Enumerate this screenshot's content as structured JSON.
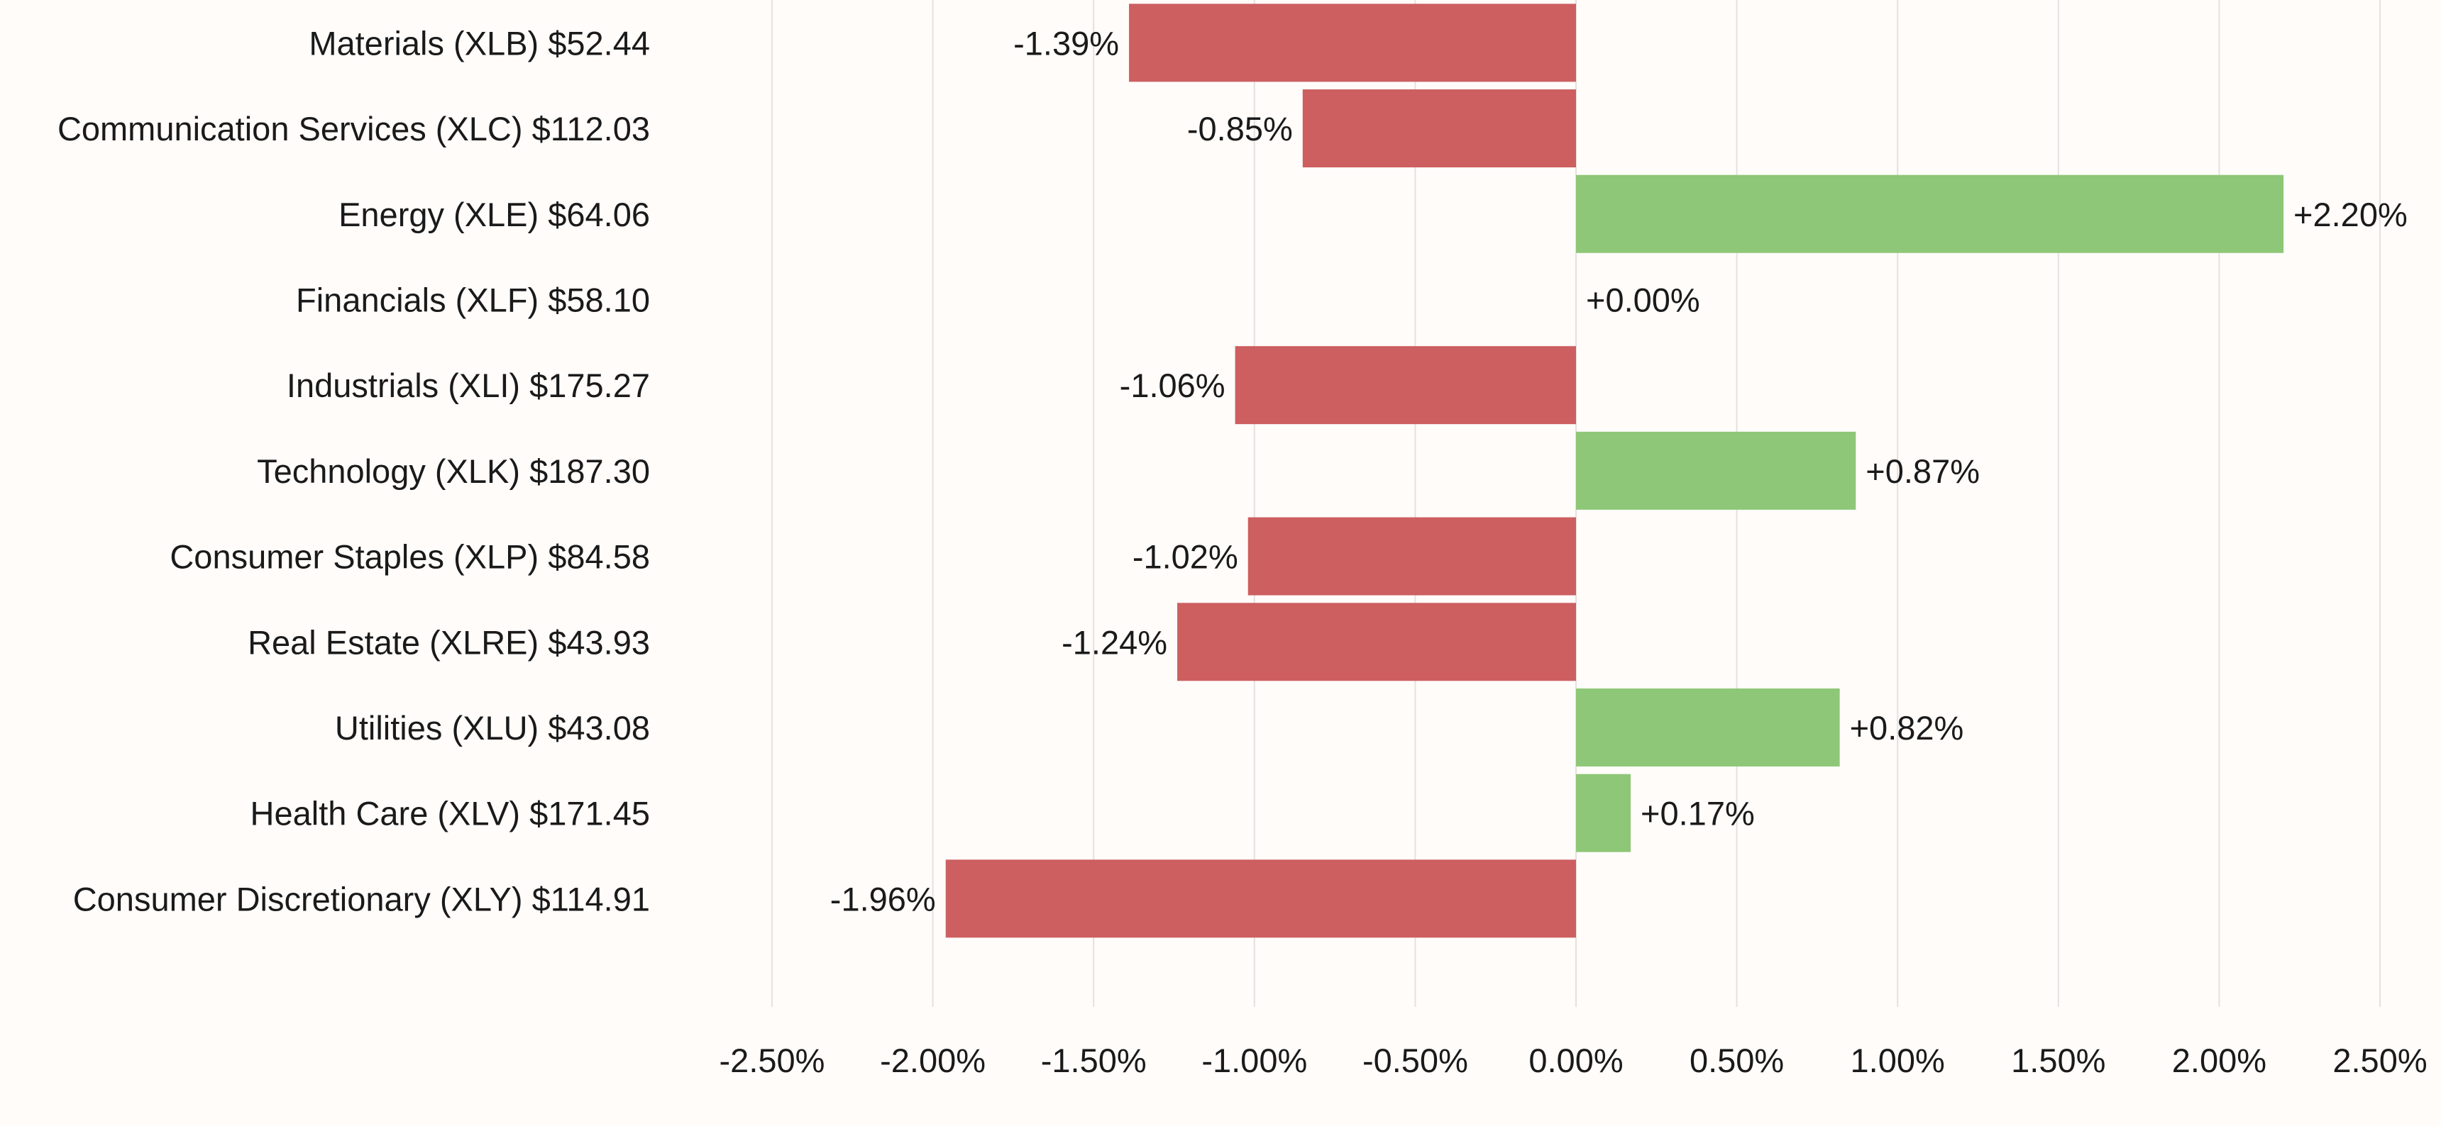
{
  "chart_data": {
    "type": "bar",
    "orientation": "horizontal",
    "categories": [
      "Materials (XLB) $52.44",
      "Communication Services (XLC) $112.03",
      "Energy (XLE) $64.06",
      "Financials (XLF) $58.10",
      "Industrials (XLI) $175.27",
      "Technology (XLK) $187.30",
      "Consumer Staples (XLP) $84.58",
      "Real Estate (XLRE) $43.93",
      "Utilities (XLU) $43.08",
      "Health Care (XLV) $171.45",
      "Consumer Discretionary (XLY) $114.91"
    ],
    "values": [
      -1.39,
      -0.85,
      2.2,
      0.0,
      -1.06,
      0.87,
      -1.02,
      -1.24,
      0.82,
      0.17,
      -1.96
    ],
    "data_labels": [
      "-1.39%",
      "-0.85%",
      "+2.20%",
      "+0.00%",
      "-1.06%",
      "+0.87%",
      "-1.02%",
      "-1.24%",
      "+0.82%",
      "+0.17%",
      "-1.96%"
    ],
    "xlim": [
      -2.5,
      2.5
    ],
    "xticks": [
      -2.5,
      -2.0,
      -1.5,
      -1.0,
      -0.5,
      0.0,
      0.5,
      1.0,
      1.5,
      2.0,
      2.5
    ],
    "xtick_labels": [
      "-2.50%",
      "-2.00%",
      "-1.50%",
      "-1.00%",
      "-0.50%",
      "0.00%",
      "0.50%",
      "1.00%",
      "1.50%",
      "2.00%",
      "2.50%"
    ],
    "title": "",
    "xlabel": "",
    "ylabel": "",
    "grid": "vertical",
    "legend": "none",
    "colors": {
      "negative": "#cd5f60",
      "positive": "#8ec777",
      "background": "#fffcfa",
      "grid": "#e4e1df",
      "text": "#1a1a1a"
    }
  }
}
